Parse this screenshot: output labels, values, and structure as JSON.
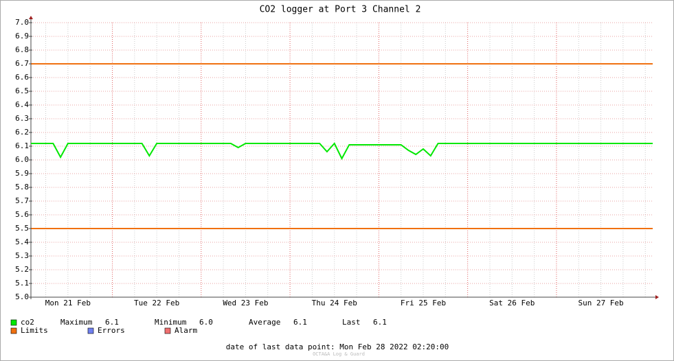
{
  "chart_data": {
    "type": "line",
    "title": "CO2 logger at Port 3 Channel 2",
    "categories": [
      null,
      null,
      null,
      null,
      null,
      "Mon 21 Feb",
      null,
      null,
      null,
      null,
      null,
      null,
      null,
      null,
      null,
      null,
      null,
      "Tue 22 Feb",
      null,
      null,
      null,
      null,
      null,
      null,
      null,
      null,
      null,
      null,
      null,
      "Wed 23 Feb",
      null,
      null,
      null,
      null,
      null,
      null,
      null,
      null,
      null,
      null,
      null,
      "Thu 24 Feb",
      null,
      null,
      null,
      null,
      null,
      null,
      null,
      null,
      null,
      null,
      null,
      "Fri 25 Feb",
      null,
      null,
      null,
      null,
      null,
      null,
      null,
      null,
      null,
      null,
      null,
      "Sat 26 Feb",
      null,
      null,
      null,
      null,
      null,
      null,
      null,
      null,
      null,
      null,
      null,
      "Sun 27 Feb",
      null,
      null,
      null,
      null,
      null,
      null,
      null
    ],
    "series": [
      {
        "name": "co2",
        "color": "#00e800",
        "values": [
          6.12,
          6.12,
          6.12,
          6.12,
          6.02,
          6.12,
          6.12,
          6.12,
          6.12,
          6.12,
          6.12,
          6.12,
          6.12,
          6.12,
          6.12,
          6.12,
          6.03,
          6.12,
          6.12,
          6.12,
          6.12,
          6.12,
          6.12,
          6.12,
          6.12,
          6.12,
          6.12,
          6.12,
          6.09,
          6.12,
          6.12,
          6.12,
          6.12,
          6.12,
          6.12,
          6.12,
          6.12,
          6.12,
          6.12,
          6.12,
          6.06,
          6.12,
          6.01,
          6.11,
          6.11,
          6.11,
          6.11,
          6.11,
          6.11,
          6.11,
          6.11,
          6.07,
          6.04,
          6.08,
          6.03,
          6.12,
          6.12,
          6.12,
          6.12,
          6.12,
          6.12,
          6.12,
          6.12,
          6.12,
          6.12,
          6.12,
          6.12,
          6.12,
          6.12,
          6.12,
          6.12,
          6.12,
          6.12,
          6.12,
          6.12,
          6.12,
          6.12,
          6.12,
          6.12,
          6.12,
          6.12,
          6.12,
          6.12,
          6.12,
          6.12
        ]
      }
    ],
    "limits": {
      "name": "Limits",
      "color": "#f07010",
      "values": [
        6.7,
        5.5
      ]
    },
    "extra_legend": [
      {
        "name": "Errors",
        "color": "#7080f0"
      },
      {
        "name": "Alarm",
        "color": "#f07070"
      }
    ],
    "stats": [
      {
        "label": "Maximum",
        "value": "6.1"
      },
      {
        "label": "Minimum",
        "value": "6.0"
      },
      {
        "label": "Average",
        "value": "6.1"
      },
      {
        "label": "Last",
        "value": "6.1"
      }
    ],
    "ylim": [
      5,
      7
    ],
    "yticks": [
      {
        "value": 5,
        "label": "5.0"
      },
      5.1,
      5.2,
      5.3,
      5.4,
      5.5,
      5.6,
      5.7,
      5.8,
      5.9,
      {
        "value": 6,
        "label": "6.0"
      },
      6.1,
      6.2,
      6.3,
      6.4,
      6.5,
      6.6,
      6.7,
      6.8,
      6.9,
      {
        "value": 7,
        "label": "7.0"
      }
    ],
    "grid": true,
    "footer": "date of last data point:  Mon Feb 28 2022 02:20:00",
    "credit": "OCTA&A Log & Guard"
  }
}
